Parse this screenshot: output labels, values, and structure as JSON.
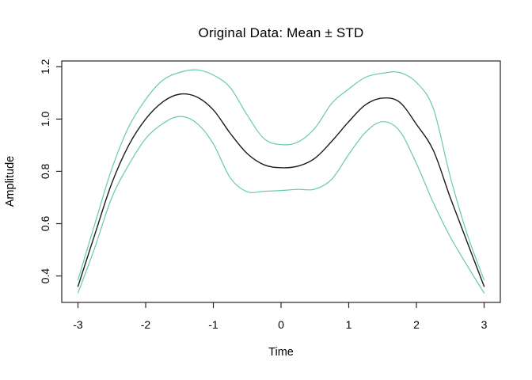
{
  "chart_data": {
    "type": "line",
    "title": "Original Data: Mean ± STD",
    "xlabel": "Time",
    "ylabel": "Amplitude",
    "xlim": [
      -3.24,
      3.24
    ],
    "ylim": [
      0.299,
      1.222
    ],
    "grid": false,
    "legend": "none",
    "x_ticks": [
      -3,
      -2,
      -1,
      0,
      1,
      2,
      3
    ],
    "x_tick_labels": [
      "-3",
      "-2",
      "-1",
      "0",
      "1",
      "2",
      "3"
    ],
    "y_ticks": [
      0.4,
      0.6,
      0.8,
      1.0,
      1.2
    ],
    "y_tick_labels": [
      "0.4",
      "0.6",
      "0.8",
      "1.0",
      "1.2"
    ],
    "x": [
      -3,
      -2.75,
      -2.5,
      -2.25,
      -2,
      -1.75,
      -1.5,
      -1.25,
      -1,
      -0.75,
      -0.5,
      -0.25,
      0,
      0.25,
      0.5,
      0.75,
      1,
      1.25,
      1.5,
      1.75,
      2,
      2.25,
      2.5,
      2.75,
      3
    ],
    "series": [
      {
        "name": "mean",
        "color": "#1a1a1a",
        "stroke_width": 1.4,
        "values": [
          0.36,
          0.56,
          0.755,
          0.9,
          1.0,
          1.065,
          1.095,
          1.085,
          1.035,
          0.945,
          0.868,
          0.825,
          0.814,
          0.82,
          0.85,
          0.915,
          0.99,
          1.055,
          1.08,
          1.065,
          0.98,
          0.88,
          0.7,
          0.53,
          0.36
        ]
      },
      {
        "name": "mean_plus_std",
        "color": "#66cba4",
        "stroke_width": 1.2,
        "values": [
          0.385,
          0.6,
          0.81,
          0.97,
          1.075,
          1.148,
          1.178,
          1.188,
          1.168,
          1.12,
          1.015,
          0.925,
          0.902,
          0.912,
          0.965,
          1.06,
          1.115,
          1.16,
          1.175,
          1.178,
          1.14,
          1.04,
          0.78,
          0.56,
          0.385
        ]
      },
      {
        "name": "mean_minus_std",
        "color": "#66cba4",
        "stroke_width": 1.2,
        "values": [
          0.335,
          0.51,
          0.7,
          0.825,
          0.925,
          0.982,
          1.01,
          0.985,
          0.905,
          0.775,
          0.722,
          0.724,
          0.727,
          0.731,
          0.732,
          0.77,
          0.865,
          0.95,
          0.99,
          0.955,
          0.83,
          0.68,
          0.55,
          0.44,
          0.335
        ]
      }
    ],
    "axis_color": "#262626",
    "background": "#ffffff"
  }
}
